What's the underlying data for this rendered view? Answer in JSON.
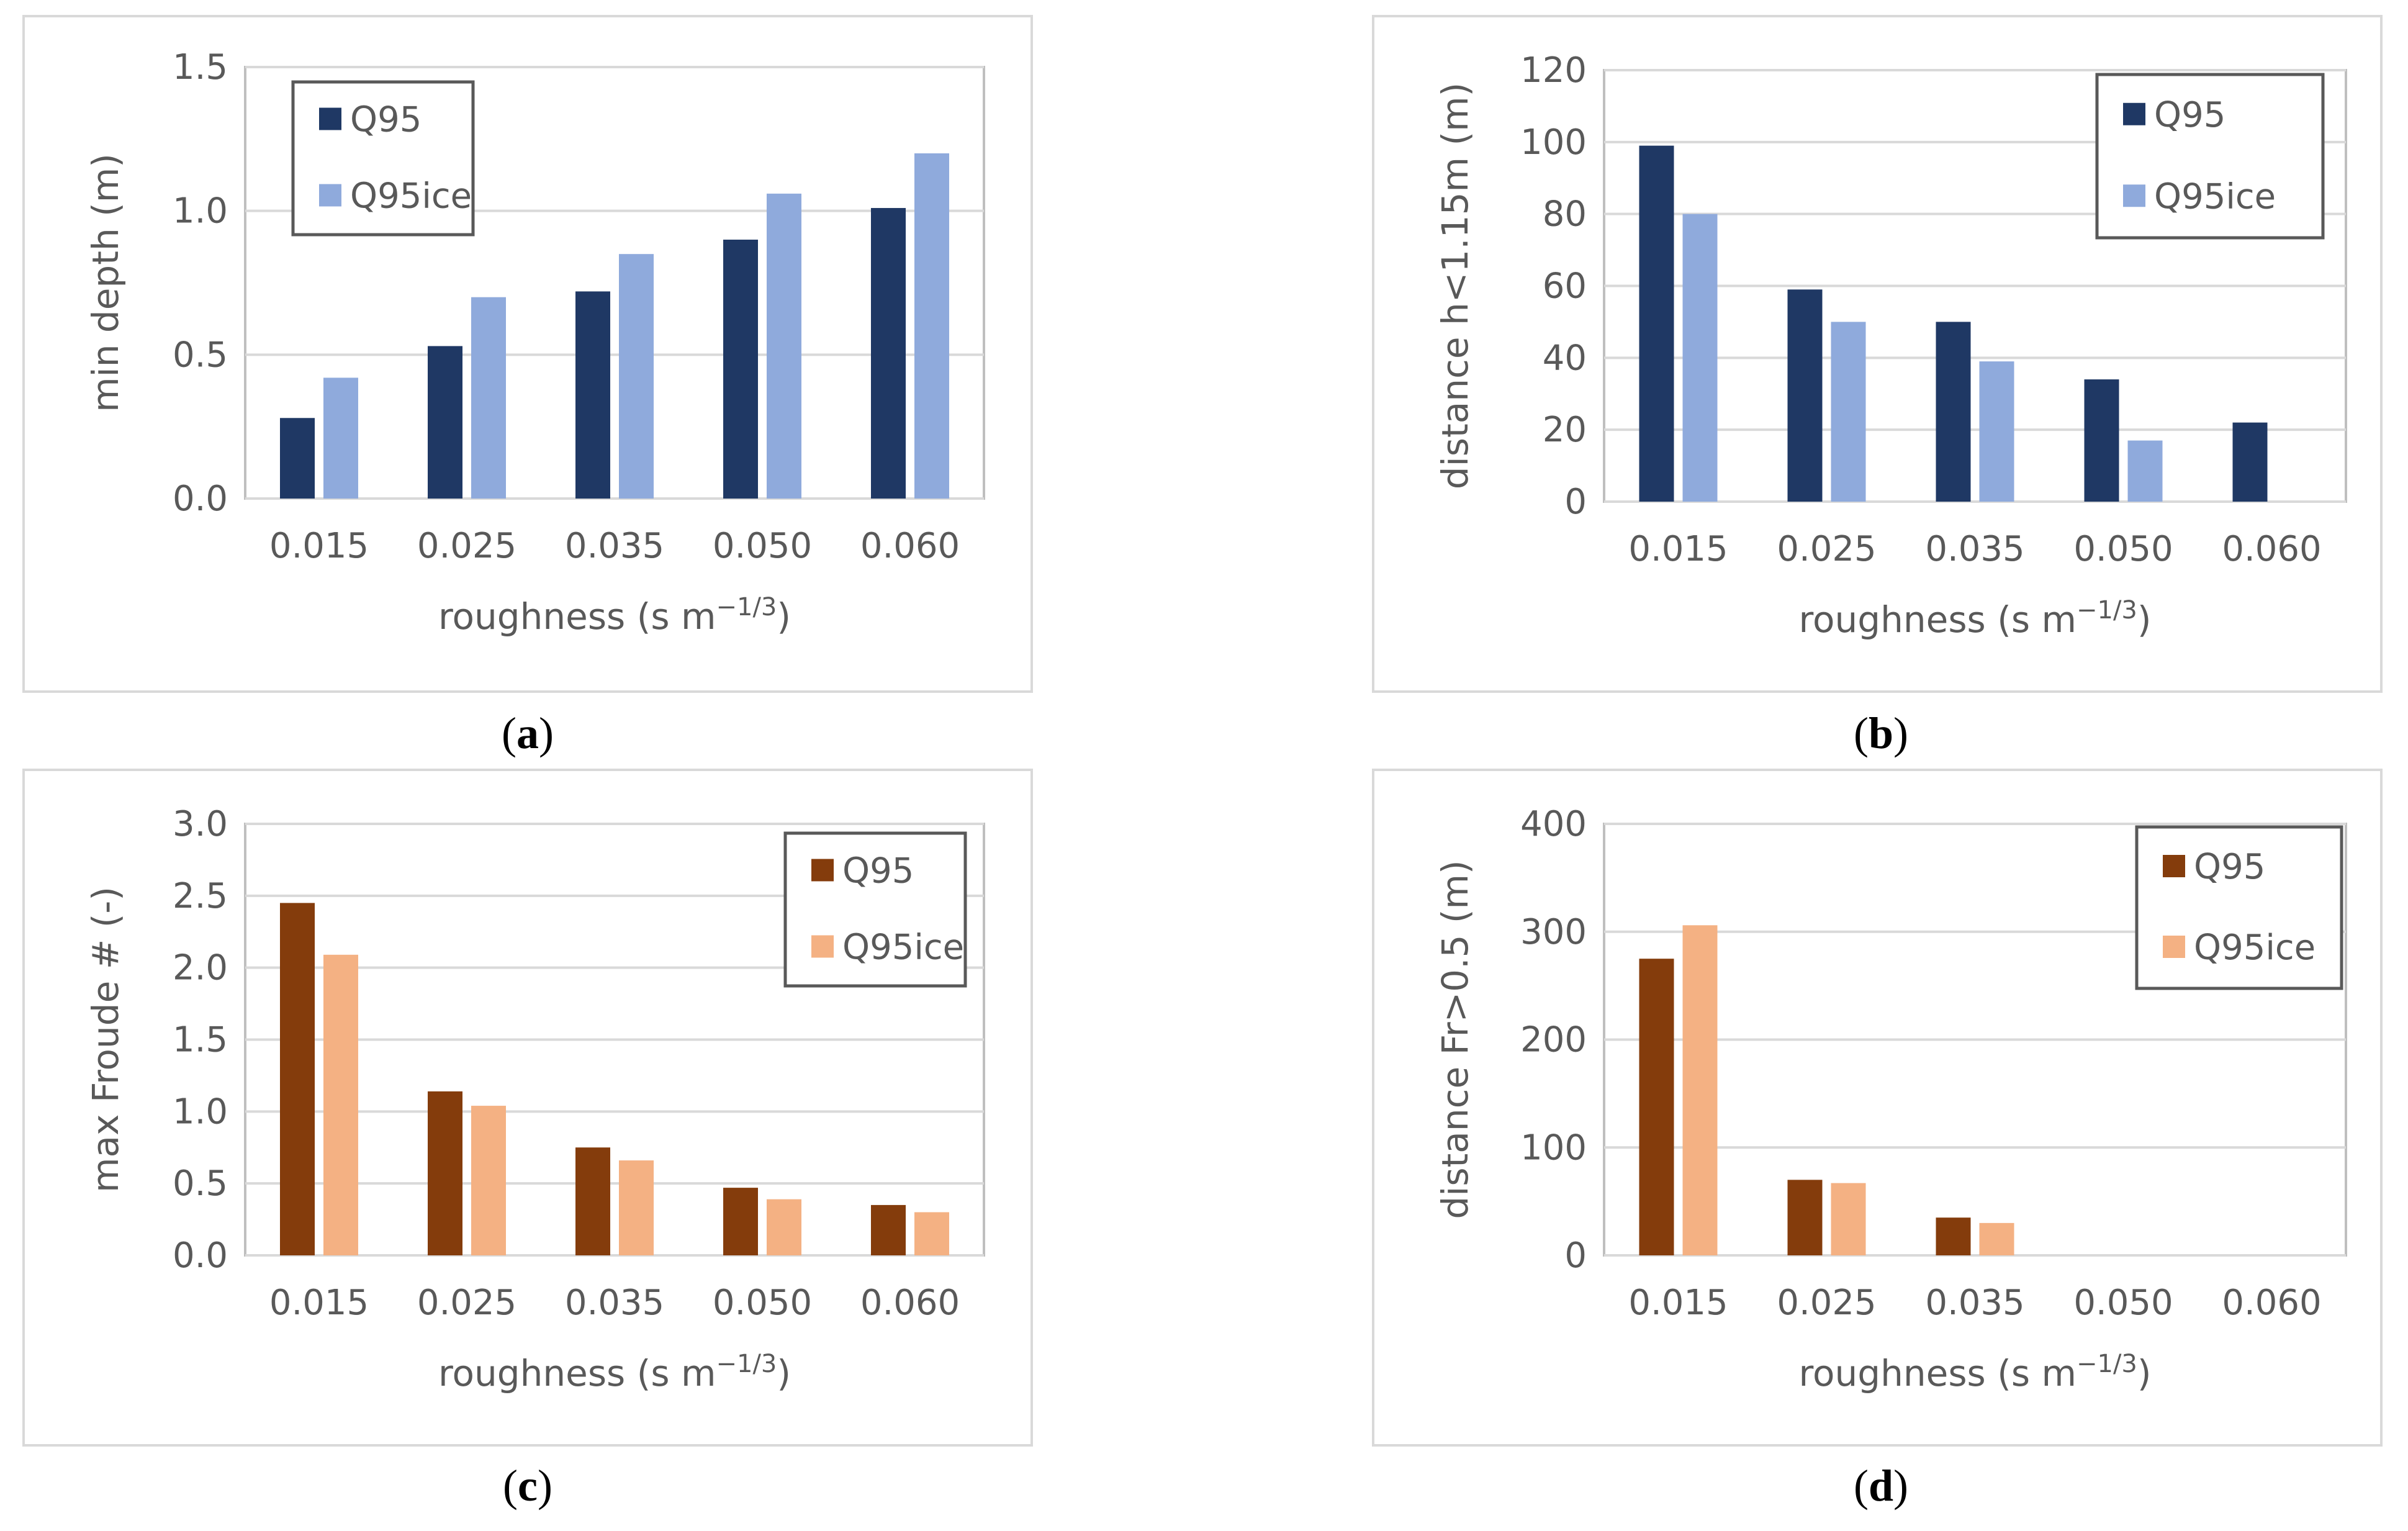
{
  "chart_data": [
    {
      "id": "a",
      "type": "bar",
      "panel_label": "a",
      "categories": [
        "0.015",
        "0.025",
        "0.035",
        "0.050",
        "0.060"
      ],
      "series": [
        {
          "name": "Q95",
          "color": "#1f3864",
          "values": [
            0.28,
            0.53,
            0.72,
            0.9,
            1.01
          ]
        },
        {
          "name": "Q95ice",
          "color": "#8faadc",
          "values": [
            0.42,
            0.7,
            0.85,
            1.06,
            1.2
          ]
        }
      ],
      "ylim": [
        0,
        1.5
      ],
      "yticks": [
        "0.0",
        "0.5",
        "1.0",
        "1.5"
      ],
      "ylabel": "min depth (m)",
      "xlabel_base": "roughness (s m",
      "xlabel_sup": "−1/3",
      "xlabel_end": ")",
      "grid": true,
      "legend_position": "top-left"
    },
    {
      "id": "b",
      "type": "bar",
      "panel_label": "b",
      "categories": [
        "0.015",
        "0.025",
        "0.035",
        "0.050",
        "0.060"
      ],
      "series": [
        {
          "name": "Q95",
          "color": "#1f3864",
          "values": [
            99,
            59,
            50,
            34,
            22
          ]
        },
        {
          "name": "Q95ice",
          "color": "#8faadc",
          "values": [
            80,
            50,
            39,
            17,
            0
          ]
        }
      ],
      "ylim": [
        0,
        120
      ],
      "yticks": [
        "0",
        "20",
        "40",
        "60",
        "80",
        "100",
        "120"
      ],
      "ylabel": "distance h<1.15m (m)",
      "xlabel_base": "roughness (s m",
      "xlabel_sup": "−1/3",
      "xlabel_end": ")",
      "grid": true,
      "legend_position": "top-right"
    },
    {
      "id": "c",
      "type": "bar",
      "panel_label": "c",
      "categories": [
        "0.015",
        "0.025",
        "0.035",
        "0.050",
        "0.060"
      ],
      "series": [
        {
          "name": "Q95",
          "color": "#843c0c",
          "values": [
            2.45,
            1.14,
            0.75,
            0.47,
            0.35
          ]
        },
        {
          "name": "Q95ice",
          "color": "#f4b183",
          "values": [
            2.09,
            1.04,
            0.66,
            0.39,
            0.3
          ]
        }
      ],
      "ylim": [
        0,
        3.0
      ],
      "yticks": [
        "0.0",
        "0.5",
        "1.0",
        "1.5",
        "2.0",
        "2.5",
        "3.0"
      ],
      "ylabel": "max Froude # (-)",
      "xlabel_base": "roughness (s m",
      "xlabel_sup": "−1/3",
      "xlabel_end": ")",
      "grid": true,
      "legend_position": "top-right"
    },
    {
      "id": "d",
      "type": "bar",
      "panel_label": "d",
      "categories": [
        "0.015",
        "0.025",
        "0.035",
        "0.050",
        "0.060"
      ],
      "series": [
        {
          "name": "Q95",
          "color": "#843c0c",
          "values": [
            275,
            70,
            35,
            0,
            0
          ]
        },
        {
          "name": "Q95ice",
          "color": "#f4b183",
          "values": [
            306,
            67,
            30,
            0,
            0
          ]
        }
      ],
      "ylim": [
        0,
        400
      ],
      "yticks": [
        "0",
        "100",
        "200",
        "300",
        "400"
      ],
      "ylabel": "distance Fr>0.5 (m)",
      "xlabel_base": "roughness (s m",
      "xlabel_sup": "−1/3",
      "xlabel_end": ")",
      "grid": true,
      "legend_position": "top-right"
    }
  ]
}
